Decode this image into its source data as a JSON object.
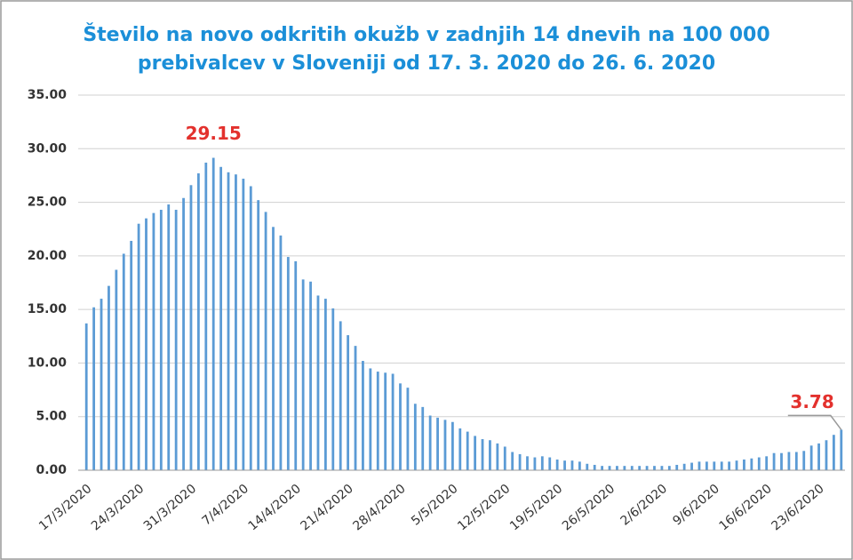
{
  "chart_data": {
    "type": "bar",
    "title": [
      "Število na novo odkritih okužb v zadnjih 14 dnevih na 100 000",
      "prebivalcev v Sloveniji od 17. 3. 2020 do 26. 6. 2020"
    ],
    "categories": [
      "17/3/2020",
      null,
      null,
      null,
      null,
      null,
      null,
      "24/3/2020",
      null,
      null,
      null,
      null,
      null,
      null,
      "31/3/2020",
      null,
      null,
      null,
      null,
      null,
      null,
      "7/4/2020",
      null,
      null,
      null,
      null,
      null,
      null,
      "14/4/2020",
      null,
      null,
      null,
      null,
      null,
      null,
      "21/4/2020",
      null,
      null,
      null,
      null,
      null,
      null,
      "28/4/2020",
      null,
      null,
      null,
      null,
      null,
      null,
      "5/5/2020",
      null,
      null,
      null,
      null,
      null,
      null,
      "12/5/2020",
      null,
      null,
      null,
      null,
      null,
      null,
      "19/5/2020",
      null,
      null,
      null,
      null,
      null,
      null,
      "26/5/2020",
      null,
      null,
      null,
      null,
      null,
      null,
      "2/6/2020",
      null,
      null,
      null,
      null,
      null,
      null,
      "9/6/2020",
      null,
      null,
      null,
      null,
      null,
      null,
      "16/6/2020",
      null,
      null,
      null,
      null,
      null,
      null,
      "23/6/2020",
      null,
      null,
      null
    ],
    "values": [
      13.7,
      15.2,
      16.0,
      17.2,
      18.7,
      20.2,
      21.4,
      23.0,
      23.5,
      24.0,
      24.3,
      24.8,
      24.3,
      25.4,
      26.6,
      27.7,
      28.7,
      29.15,
      28.3,
      27.8,
      27.6,
      27.2,
      26.5,
      25.2,
      24.1,
      22.7,
      21.9,
      19.9,
      19.5,
      17.8,
      17.6,
      16.3,
      16.0,
      15.1,
      13.9,
      12.6,
      11.6,
      10.2,
      9.5,
      9.2,
      9.1,
      9.0,
      8.1,
      7.7,
      6.2,
      5.9,
      5.1,
      4.9,
      4.7,
      4.5,
      3.9,
      3.6,
      3.2,
      2.9,
      2.8,
      2.5,
      2.2,
      1.7,
      1.5,
      1.3,
      1.2,
      1.3,
      1.2,
      1.0,
      0.9,
      0.9,
      0.8,
      0.6,
      0.5,
      0.4,
      0.4,
      0.4,
      0.4,
      0.4,
      0.4,
      0.4,
      0.4,
      0.4,
      0.4,
      0.5,
      0.6,
      0.7,
      0.8,
      0.8,
      0.8,
      0.8,
      0.8,
      0.9,
      1.0,
      1.1,
      1.2,
      1.3,
      1.6,
      1.6,
      1.7,
      1.7,
      1.8,
      2.3,
      2.5,
      2.8,
      3.3,
      3.78
    ],
    "color": "#5b9bd5",
    "ylim": [
      0,
      35
    ],
    "yticks": [
      {
        "value": 0,
        "label": "0.00"
      },
      {
        "value": 5,
        "label": "5.00"
      },
      {
        "value": 10,
        "label": "10.00"
      },
      {
        "value": 15,
        "label": "15.00"
      },
      {
        "value": 20,
        "label": "20.00"
      },
      {
        "value": 25,
        "label": "25.00"
      },
      {
        "value": 30,
        "label": "30.00"
      },
      {
        "value": 35,
        "label": "35.00"
      }
    ],
    "grid": true
  }
}
